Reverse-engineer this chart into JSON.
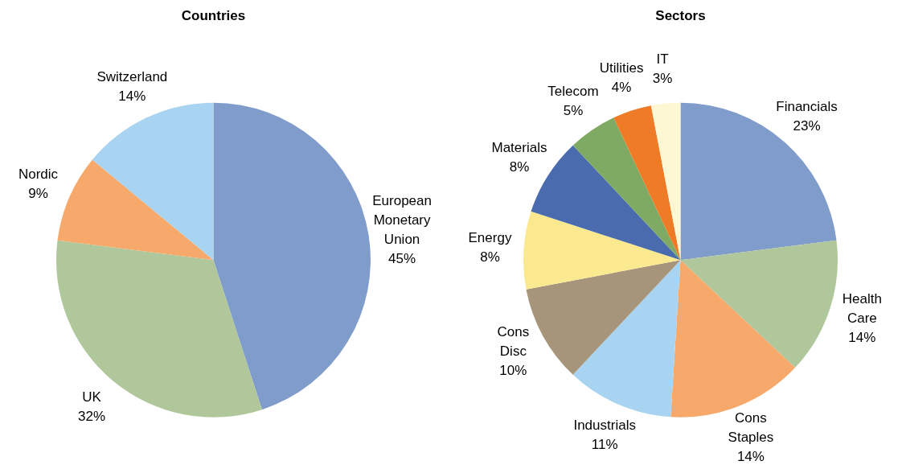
{
  "chart_data": [
    {
      "type": "pie",
      "title": "Countries",
      "categories": [
        "European Monetary Union",
        "UK",
        "Nordic",
        "Switzerland"
      ],
      "values": [
        45,
        32,
        9,
        14
      ],
      "value_labels": [
        "45%",
        "32%",
        "9%",
        "14%"
      ],
      "colors": [
        "#7f9ccb",
        "#afc79a",
        "#f6a96a",
        "#a8d4f2"
      ],
      "legend": false
    },
    {
      "type": "pie",
      "title": "Sectors",
      "categories": [
        "Financials",
        "Health Care",
        "Cons Staples",
        "Industrials",
        "Cons Disc",
        "Energy",
        "Materials",
        "Telecom",
        "Utilities",
        "IT"
      ],
      "values": [
        23,
        14,
        14,
        11,
        10,
        8,
        8,
        5,
        4,
        3
      ],
      "value_labels": [
        "23%",
        "14%",
        "14%",
        "11%",
        "10%",
        "8%",
        "8%",
        "5%",
        "4%",
        "3%"
      ],
      "colors": [
        "#7f9ccb",
        "#afc79a",
        "#f6a96a",
        "#a8d4f2",
        "#a6957a",
        "#fae98f",
        "#4a6cae",
        "#7faa63",
        "#f07b27",
        "#fdf7d4"
      ],
      "legend": false
    }
  ]
}
